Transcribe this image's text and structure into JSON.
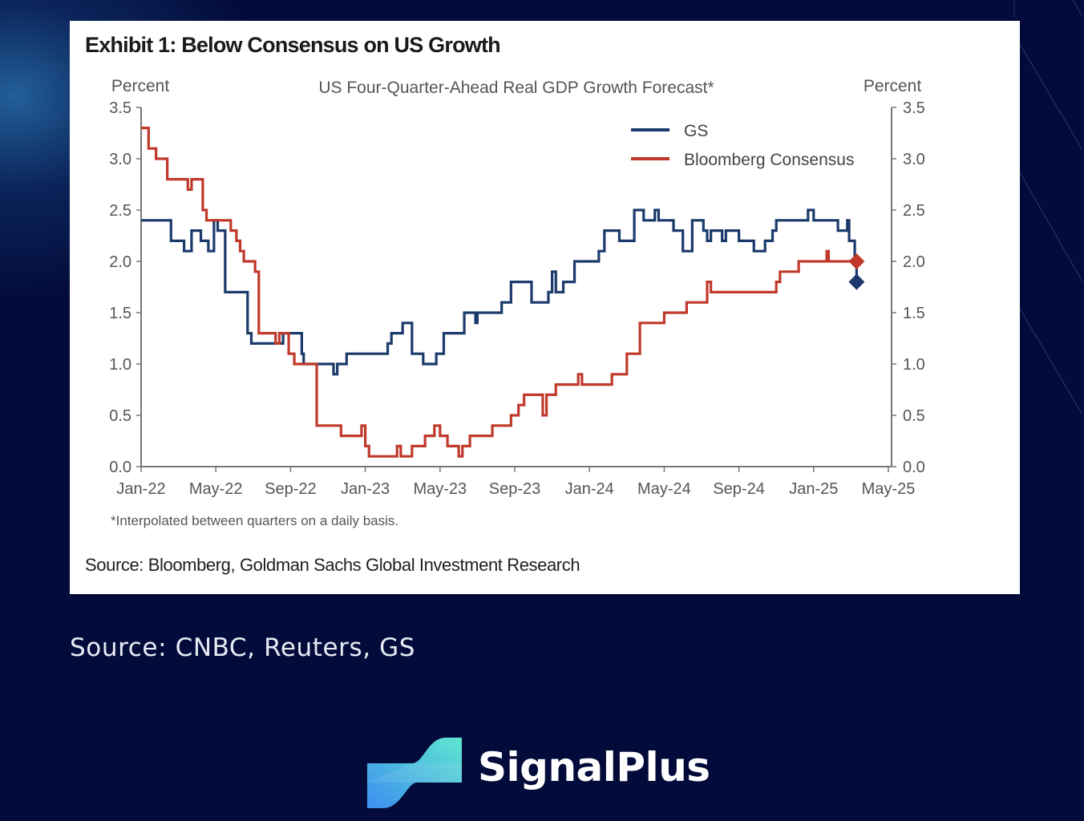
{
  "page": {
    "outer_source": "Source: CNBC, Reuters, GS",
    "brand_name": "SignalPlus",
    "colors": {
      "background": "#020b3a",
      "gs": "#1b3a6b",
      "consensus": "#c0392b"
    }
  },
  "exhibit": {
    "title": "Exhibit 1: Below Consensus on US Growth",
    "source": "Source: Bloomberg, Goldman Sachs Global Investment Research"
  },
  "chart_data": {
    "type": "line",
    "title": "US Four-Quarter-Ahead Real GDP Growth Forecast*",
    "ylabel_left": "Percent",
    "ylabel_right": "Percent",
    "footnote": "*Interpolated between quarters on a daily basis.",
    "ylim": [
      0,
      3.5
    ],
    "yticks": [
      "0.0",
      "0.5",
      "1.0",
      "1.5",
      "2.0",
      "2.5",
      "3.0",
      "3.5"
    ],
    "x_unit": "months since Jan-22",
    "xlim": [
      0,
      40
    ],
    "xtick_labels": [
      "Jan-22",
      "May-22",
      "Sep-22",
      "Jan-23",
      "May-23",
      "Sep-23",
      "Jan-24",
      "May-24",
      "Sep-24",
      "Jan-25",
      "May-25"
    ],
    "legend_position": "top-right",
    "series": [
      {
        "name": "GS",
        "color": "#1b3a6b",
        "step": true,
        "points": [
          [
            0,
            2.4
          ],
          [
            1.5,
            2.4
          ],
          [
            1.6,
            2.2
          ],
          [
            2.2,
            2.2
          ],
          [
            2.3,
            2.1
          ],
          [
            2.6,
            2.1
          ],
          [
            2.7,
            2.3
          ],
          [
            3.1,
            2.3
          ],
          [
            3.2,
            2.2
          ],
          [
            3.4,
            2.2
          ],
          [
            3.6,
            2.1
          ],
          [
            3.8,
            2.1
          ],
          [
            3.9,
            2.4
          ],
          [
            4.1,
            2.3
          ],
          [
            4.4,
            2.3
          ],
          [
            4.5,
            1.7
          ],
          [
            5.5,
            1.7
          ],
          [
            5.7,
            1.3
          ],
          [
            5.9,
            1.2
          ],
          [
            7.3,
            1.2
          ],
          [
            7.6,
            1.3
          ],
          [
            8.5,
            1.3
          ],
          [
            8.6,
            1.1
          ],
          [
            8.7,
            1.0
          ],
          [
            10.1,
            1.0
          ],
          [
            10.3,
            0.9
          ],
          [
            10.5,
            1.0
          ],
          [
            10.8,
            1.0
          ],
          [
            11,
            1.1
          ],
          [
            13.0,
            1.1
          ],
          [
            13.2,
            1.2
          ],
          [
            13.4,
            1.3
          ],
          [
            13.7,
            1.3
          ],
          [
            14.0,
            1.4
          ],
          [
            14.2,
            1.4
          ],
          [
            14.5,
            1.1
          ],
          [
            14.9,
            1.1
          ],
          [
            15.1,
            1.0
          ],
          [
            15.6,
            1.0
          ],
          [
            15.8,
            1.1
          ],
          [
            16.1,
            1.1
          ],
          [
            16.2,
            1.3
          ],
          [
            17.2,
            1.3
          ],
          [
            17.3,
            1.5
          ],
          [
            17.8,
            1.5
          ],
          [
            17.9,
            1.4
          ],
          [
            18.0,
            1.5
          ],
          [
            19.1,
            1.5
          ],
          [
            19.3,
            1.6
          ],
          [
            19.7,
            1.6
          ],
          [
            19.8,
            1.8
          ],
          [
            20.8,
            1.8
          ],
          [
            20.9,
            1.6
          ],
          [
            21.6,
            1.6
          ],
          [
            21.8,
            1.7
          ],
          [
            22.0,
            1.9
          ],
          [
            22.2,
            1.7
          ],
          [
            22.5,
            1.7
          ],
          [
            22.6,
            1.8
          ],
          [
            23.0,
            1.8
          ],
          [
            23.2,
            2.0
          ],
          [
            24.3,
            2.0
          ],
          [
            24.5,
            2.1
          ],
          [
            24.8,
            2.3
          ],
          [
            25.4,
            2.3
          ],
          [
            25.6,
            2.2
          ],
          [
            26.3,
            2.2
          ],
          [
            26.4,
            2.5
          ],
          [
            26.8,
            2.5
          ],
          [
            26.9,
            2.4
          ],
          [
            27.3,
            2.4
          ],
          [
            27.5,
            2.5
          ],
          [
            27.7,
            2.4
          ],
          [
            28.2,
            2.4
          ],
          [
            28.5,
            2.3
          ],
          [
            28.8,
            2.3
          ],
          [
            29.0,
            2.1
          ],
          [
            29.4,
            2.1
          ],
          [
            29.5,
            2.4
          ],
          [
            30.0,
            2.4
          ],
          [
            30.1,
            2.3
          ],
          [
            30.3,
            2.2
          ],
          [
            30.5,
            2.3
          ],
          [
            31.0,
            2.3
          ],
          [
            31.1,
            2.2
          ],
          [
            31.3,
            2.3
          ],
          [
            31.8,
            2.3
          ],
          [
            32.0,
            2.2
          ],
          [
            32.6,
            2.2
          ],
          [
            32.8,
            2.1
          ],
          [
            33.3,
            2.1
          ],
          [
            33.4,
            2.2
          ],
          [
            33.8,
            2.3
          ],
          [
            34.0,
            2.4
          ],
          [
            35.5,
            2.4
          ],
          [
            35.7,
            2.5
          ],
          [
            36.0,
            2.4
          ],
          [
            37.2,
            2.4
          ],
          [
            37.3,
            2.3
          ],
          [
            37.7,
            2.3
          ],
          [
            37.8,
            2.4
          ],
          [
            37.9,
            2.2
          ],
          [
            38.2,
            2.0
          ],
          [
            38.3,
            1.8
          ]
        ],
        "end_marker": {
          "x": 38.3,
          "y": 1.8,
          "shape": "diamond"
        }
      },
      {
        "name": "Bloomberg Consensus",
        "color": "#c0392b",
        "step": true,
        "points": [
          [
            0,
            3.3
          ],
          [
            0.3,
            3.3
          ],
          [
            0.4,
            3.1
          ],
          [
            0.7,
            3.1
          ],
          [
            0.8,
            3.0
          ],
          [
            1.3,
            3.0
          ],
          [
            1.4,
            2.8
          ],
          [
            2.4,
            2.8
          ],
          [
            2.5,
            2.7
          ],
          [
            2.7,
            2.8
          ],
          [
            3.1,
            2.8
          ],
          [
            3.3,
            2.5
          ],
          [
            3.5,
            2.4
          ],
          [
            4.6,
            2.4
          ],
          [
            4.8,
            2.3
          ],
          [
            5.1,
            2.2
          ],
          [
            5.3,
            2.1
          ],
          [
            5.5,
            2.0
          ],
          [
            6.1,
            1.9
          ],
          [
            6.3,
            1.3
          ],
          [
            7.0,
            1.3
          ],
          [
            7.2,
            1.2
          ],
          [
            7.4,
            1.3
          ],
          [
            7.7,
            1.3
          ],
          [
            7.9,
            1.1
          ],
          [
            8.2,
            1.0
          ],
          [
            9.2,
            1.0
          ],
          [
            9.4,
            0.4
          ],
          [
            10.5,
            0.4
          ],
          [
            10.7,
            0.3
          ],
          [
            11.7,
            0.3
          ],
          [
            11.8,
            0.4
          ],
          [
            12.0,
            0.2
          ],
          [
            12.2,
            0.1
          ],
          [
            13.6,
            0.1
          ],
          [
            13.7,
            0.2
          ],
          [
            13.9,
            0.1
          ],
          [
            14.3,
            0.1
          ],
          [
            14.5,
            0.2
          ],
          [
            15.2,
            0.3
          ],
          [
            15.6,
            0.3
          ],
          [
            15.7,
            0.4
          ],
          [
            16.0,
            0.3
          ],
          [
            16.3,
            0.3
          ],
          [
            16.4,
            0.2
          ],
          [
            16.8,
            0.2
          ],
          [
            17.0,
            0.1
          ],
          [
            17.2,
            0.2
          ],
          [
            17.5,
            0.2
          ],
          [
            17.6,
            0.3
          ],
          [
            18.6,
            0.3
          ],
          [
            18.8,
            0.4
          ],
          [
            19.6,
            0.4
          ],
          [
            19.8,
            0.5
          ],
          [
            20.2,
            0.6
          ],
          [
            20.5,
            0.7
          ],
          [
            21.3,
            0.7
          ],
          [
            21.5,
            0.5
          ],
          [
            21.7,
            0.7
          ],
          [
            22.0,
            0.7
          ],
          [
            22.2,
            0.8
          ],
          [
            23.3,
            0.8
          ],
          [
            23.4,
            0.9
          ],
          [
            23.6,
            0.8
          ],
          [
            25.0,
            0.8
          ],
          [
            25.2,
            0.9
          ],
          [
            25.8,
            0.9
          ],
          [
            26.0,
            1.1
          ],
          [
            26.5,
            1.1
          ],
          [
            26.7,
            1.4
          ],
          [
            27.8,
            1.4
          ],
          [
            28.0,
            1.5
          ],
          [
            29.0,
            1.5
          ],
          [
            29.2,
            1.6
          ],
          [
            30.0,
            1.6
          ],
          [
            30.3,
            1.8
          ],
          [
            30.5,
            1.7
          ],
          [
            33.8,
            1.7
          ],
          [
            34.0,
            1.8
          ],
          [
            34.2,
            1.9
          ],
          [
            35.0,
            1.9
          ],
          [
            35.2,
            2.0
          ],
          [
            36.6,
            2.0
          ],
          [
            36.7,
            2.1
          ],
          [
            36.8,
            2.0
          ],
          [
            38.3,
            2.0
          ]
        ],
        "end_marker": {
          "x": 38.3,
          "y": 2.0,
          "shape": "diamond"
        }
      }
    ]
  }
}
